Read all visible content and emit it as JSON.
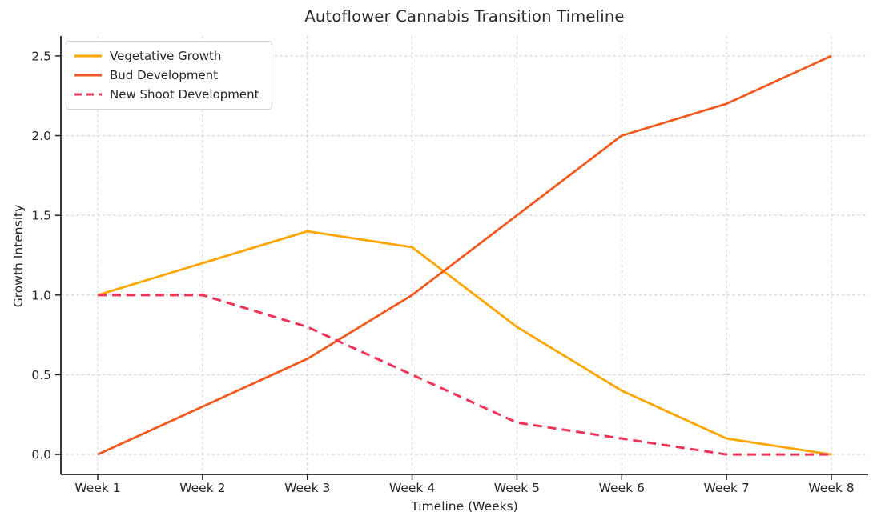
{
  "page": {
    "title": "Autoflower Cannabis Transition Timeline"
  },
  "chart_data": {
    "type": "line",
    "title": "Autoflower Cannabis Transition Timeline",
    "xlabel": "Timeline (Weeks)",
    "ylabel": "Growth Intensity",
    "categories": [
      "Week 1",
      "Week 2",
      "Week 3",
      "Week 4",
      "Week 5",
      "Week 6",
      "Week 7",
      "Week 8"
    ],
    "y_ticks": [
      0.0,
      0.5,
      1.0,
      1.5,
      2.0,
      2.5
    ],
    "ylim": [
      -0.125,
      2.625
    ],
    "grid": true,
    "grid_style": "dashed",
    "legend_position": "upper-left",
    "series": [
      {
        "name": "Vegetative Growth",
        "color": "#FFA500",
        "style": "solid",
        "values": [
          1.0,
          1.2,
          1.4,
          1.3,
          0.8,
          0.4,
          0.1,
          0.0
        ]
      },
      {
        "name": "Bud Development",
        "color": "#F2591F",
        "style": "solid",
        "values": [
          0.0,
          0.3,
          0.6,
          1.0,
          1.5,
          2.0,
          2.2,
          2.5
        ]
      },
      {
        "name": "New Shoot Development",
        "color": "#EE3459",
        "style": "dashed",
        "values": [
          1.0,
          1.0,
          0.8,
          0.5,
          0.2,
          0.1,
          0.0,
          0.0
        ]
      }
    ],
    "style": {
      "grid_color": "#d4d4d4",
      "spine_color": "#222222",
      "tick_label_color": "#262626",
      "title_color": "#2b2b2b"
    }
  }
}
